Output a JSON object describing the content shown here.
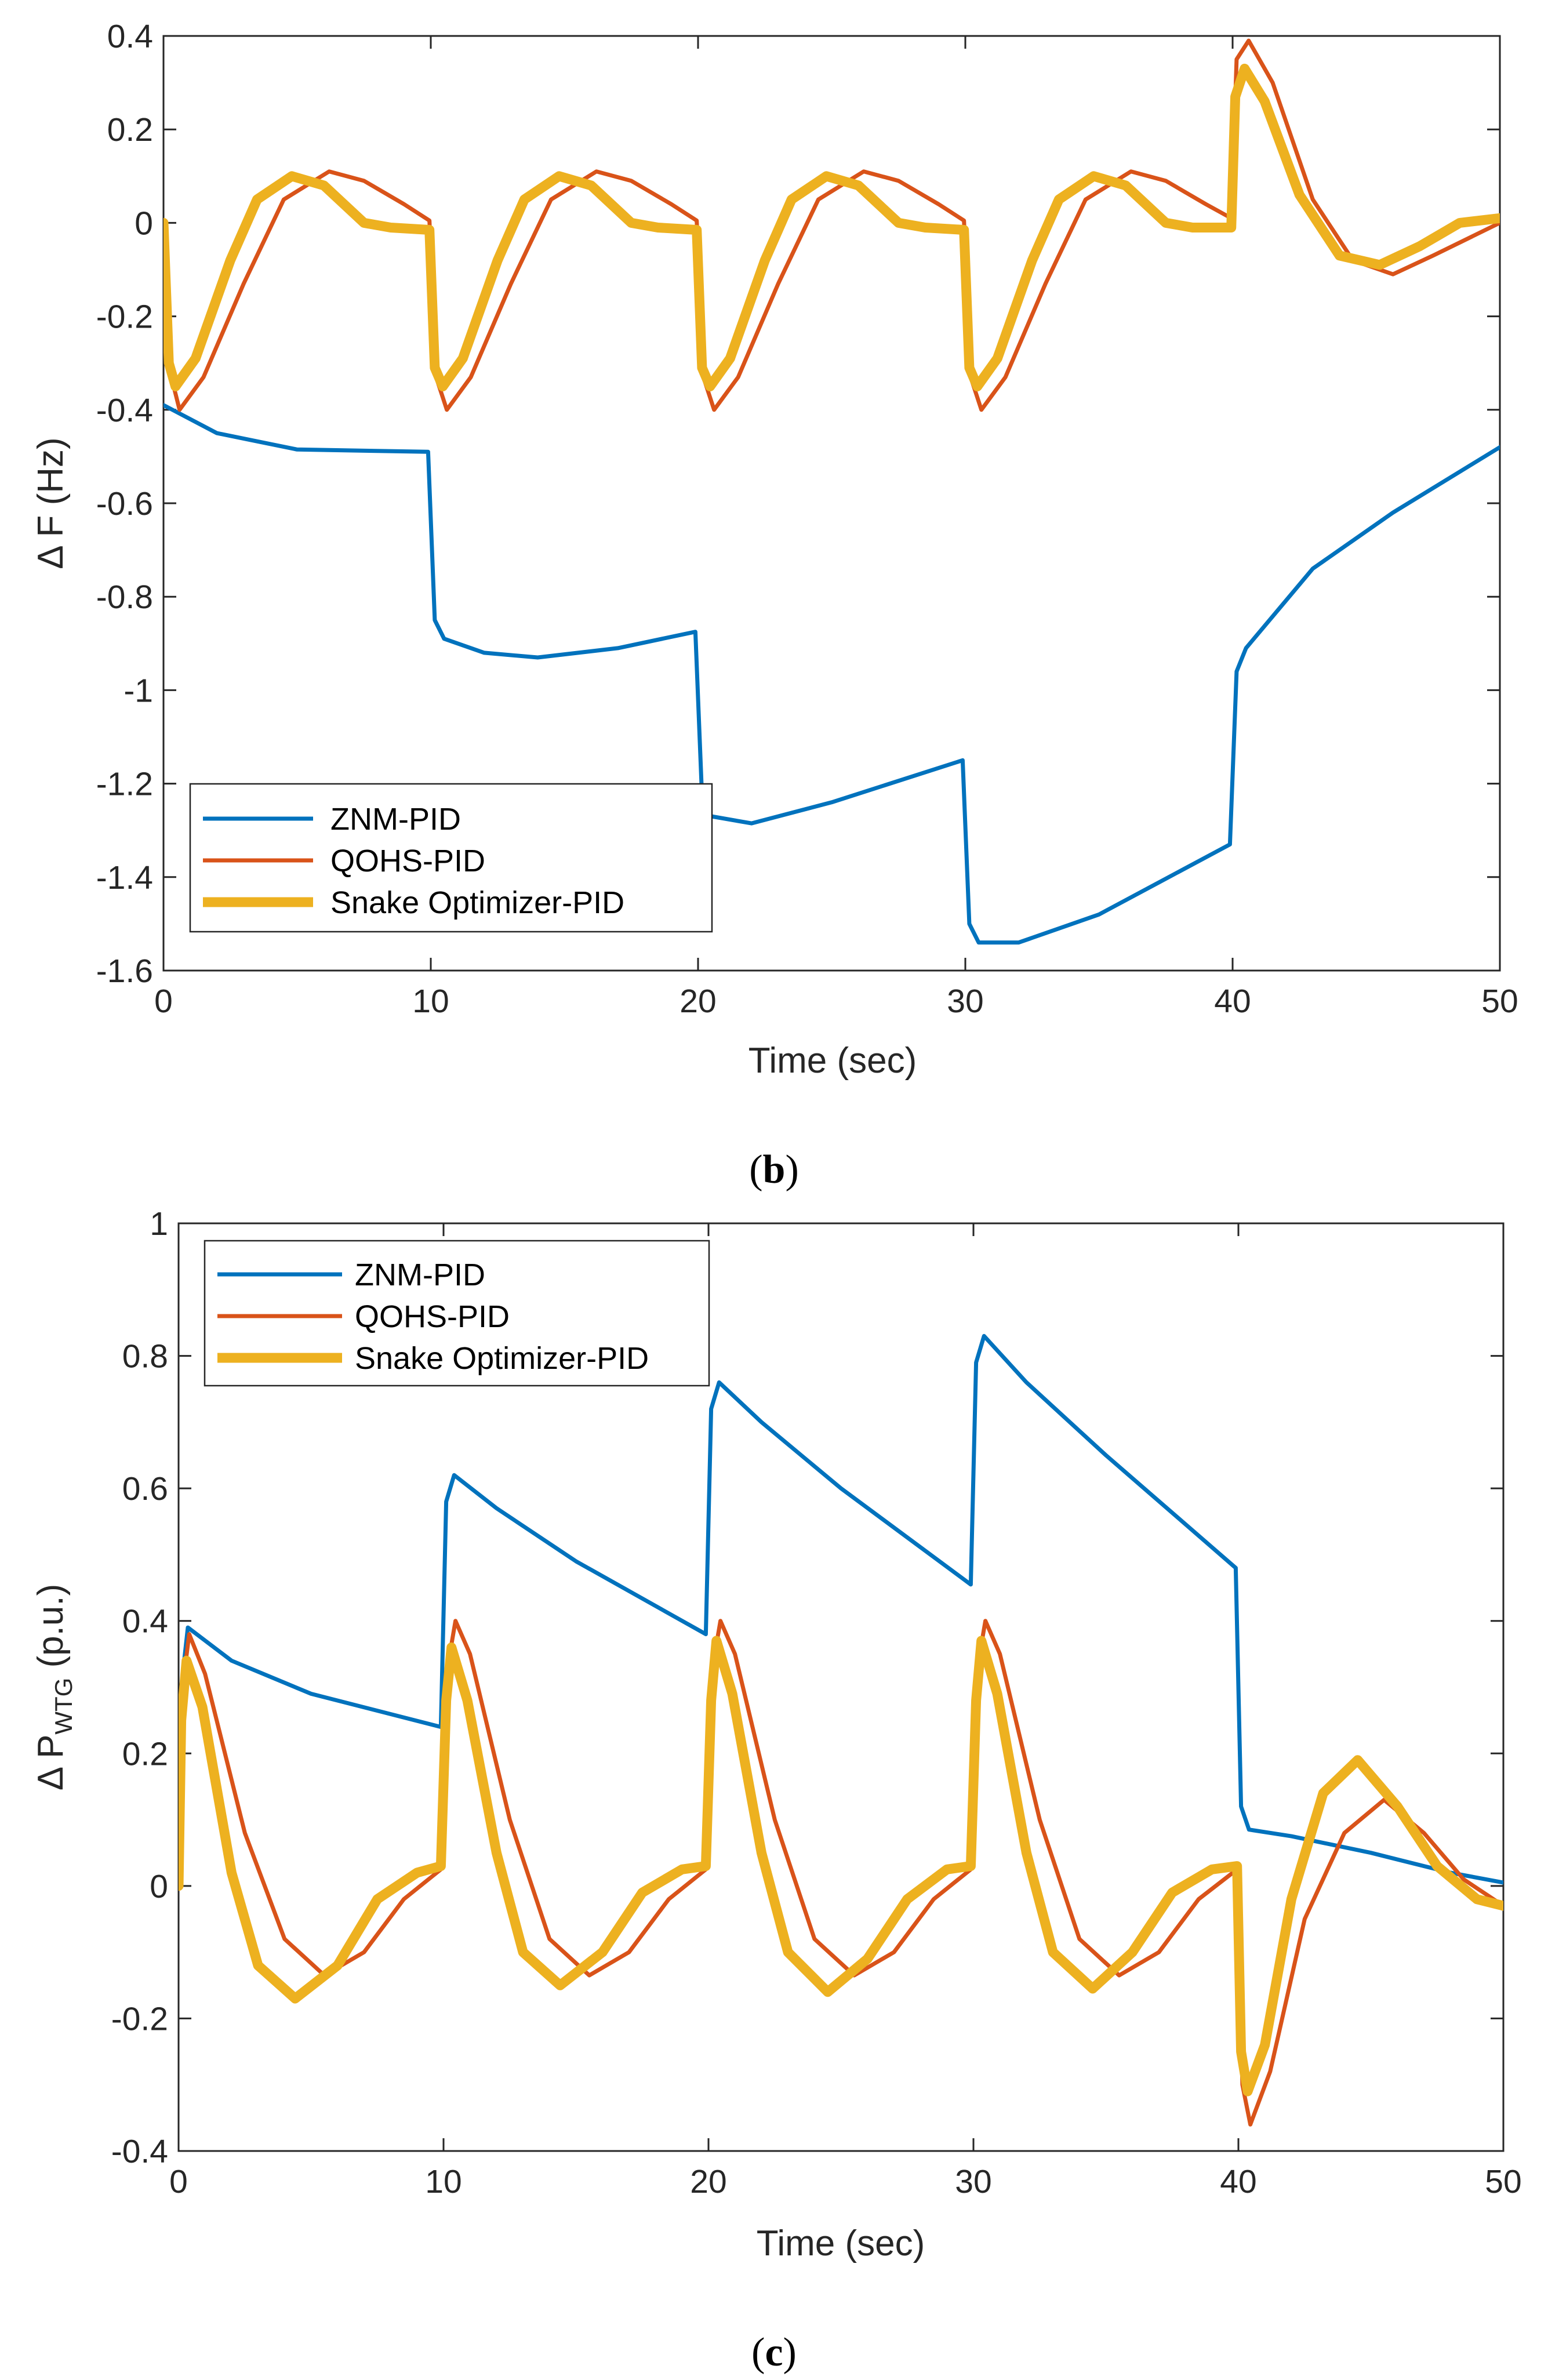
{
  "chart_data": [
    {
      "type": "line",
      "caption_open": "(",
      "caption_letter": "b",
      "caption_close": ")",
      "title": "",
      "xlabel": "Time (sec)",
      "ylabel_prefix": "Δ F ",
      "ylabel_main": "(Hz)",
      "ylabel_sub": "",
      "ylabel_tail": "",
      "xlim": [
        0,
        50
      ],
      "ylim": [
        -1.6,
        0.4
      ],
      "xticks": [
        0,
        10,
        20,
        30,
        40,
        50
      ],
      "yticks": [
        -1.6,
        -1.4,
        -1.2,
        -1,
        -0.8,
        -0.6,
        -0.4,
        -0.2,
        0,
        0.2,
        0.4
      ],
      "xtick_labels": [
        "0",
        "10",
        "20",
        "30",
        "40",
        "50"
      ],
      "ytick_labels": [
        "-1.6",
        "-1.4",
        "-1.2",
        "-1",
        "-0.8",
        "-0.6",
        "-0.4",
        "-0.2",
        "0",
        "0.2",
        "0.4"
      ],
      "legend_position": "bottom-left",
      "series": [
        {
          "name": "ZNM-PID",
          "color": "#0072BD",
          "width": "thin",
          "points": [
            [
              0,
              -0.39
            ],
            [
              2,
              -0.45
            ],
            [
              5,
              -0.485
            ],
            [
              9.9,
              -0.49
            ],
            [
              10.15,
              -0.85
            ],
            [
              10.5,
              -0.89
            ],
            [
              12,
              -0.92
            ],
            [
              14,
              -0.93
            ],
            [
              17,
              -0.91
            ],
            [
              19.9,
              -0.875
            ],
            [
              20.15,
              -1.23
            ],
            [
              20.5,
              -1.27
            ],
            [
              22,
              -1.285
            ],
            [
              25,
              -1.24
            ],
            [
              29.9,
              -1.15
            ],
            [
              30.15,
              -1.5
            ],
            [
              30.5,
              -1.54
            ],
            [
              32,
              -1.54
            ],
            [
              35,
              -1.48
            ],
            [
              39.9,
              -1.33
            ],
            [
              40.15,
              -0.96
            ],
            [
              40.5,
              -0.91
            ],
            [
              43,
              -0.74
            ],
            [
              46,
              -0.62
            ],
            [
              50,
              -0.48
            ]
          ]
        },
        {
          "name": "QOHS-PID",
          "color": "#D95319",
          "width": "thin",
          "points": [
            [
              0,
              0
            ],
            [
              0.25,
              -0.32
            ],
            [
              0.6,
              -0.4
            ],
            [
              1.5,
              -0.33
            ],
            [
              3,
              -0.13
            ],
            [
              4.5,
              0.05
            ],
            [
              6.2,
              0.11
            ],
            [
              7.5,
              0.09
            ],
            [
              9,
              0.04
            ],
            [
              9.95,
              0.005
            ],
            [
              10.2,
              -0.33
            ],
            [
              10.6,
              -0.4
            ],
            [
              11.5,
              -0.33
            ],
            [
              13,
              -0.13
            ],
            [
              14.5,
              0.05
            ],
            [
              16.2,
              0.11
            ],
            [
              17.5,
              0.09
            ],
            [
              19,
              0.04
            ],
            [
              19.95,
              0.005
            ],
            [
              20.2,
              -0.33
            ],
            [
              20.6,
              -0.4
            ],
            [
              21.5,
              -0.33
            ],
            [
              23,
              -0.13
            ],
            [
              24.5,
              0.05
            ],
            [
              26.2,
              0.11
            ],
            [
              27.5,
              0.09
            ],
            [
              29,
              0.04
            ],
            [
              29.95,
              0.005
            ],
            [
              30.2,
              -0.33
            ],
            [
              30.6,
              -0.4
            ],
            [
              31.5,
              -0.33
            ],
            [
              33,
              -0.13
            ],
            [
              34.5,
              0.05
            ],
            [
              36.2,
              0.11
            ],
            [
              37.5,
              0.09
            ],
            [
              39,
              0.04
            ],
            [
              39.95,
              0.01
            ],
            [
              40.15,
              0.35
            ],
            [
              40.6,
              0.39
            ],
            [
              41.5,
              0.3
            ],
            [
              43,
              0.05
            ],
            [
              44.5,
              -0.08
            ],
            [
              46,
              -0.11
            ],
            [
              47.5,
              -0.07
            ],
            [
              50,
              0.0
            ]
          ]
        },
        {
          "name": "Snake Optimizer-PID",
          "color": "#EDB120",
          "width": "thick",
          "points": [
            [
              0,
              0
            ],
            [
              0.2,
              -0.3
            ],
            [
              0.45,
              -0.35
            ],
            [
              1.2,
              -0.29
            ],
            [
              2.5,
              -0.08
            ],
            [
              3.5,
              0.05
            ],
            [
              4.8,
              0.1
            ],
            [
              6,
              0.08
            ],
            [
              7.5,
              0.0
            ],
            [
              8.5,
              -0.01
            ],
            [
              9.95,
              -0.015
            ],
            [
              10.15,
              -0.31
            ],
            [
              10.45,
              -0.35
            ],
            [
              11.2,
              -0.29
            ],
            [
              12.5,
              -0.08
            ],
            [
              13.5,
              0.05
            ],
            [
              14.8,
              0.1
            ],
            [
              16,
              0.08
            ],
            [
              17.5,
              0.0
            ],
            [
              18.5,
              -0.01
            ],
            [
              19.95,
              -0.015
            ],
            [
              20.15,
              -0.31
            ],
            [
              20.45,
              -0.35
            ],
            [
              21.2,
              -0.29
            ],
            [
              22.5,
              -0.08
            ],
            [
              23.5,
              0.05
            ],
            [
              24.8,
              0.1
            ],
            [
              26,
              0.08
            ],
            [
              27.5,
              0.0
            ],
            [
              28.5,
              -0.01
            ],
            [
              29.95,
              -0.015
            ],
            [
              30.15,
              -0.31
            ],
            [
              30.45,
              -0.35
            ],
            [
              31.2,
              -0.29
            ],
            [
              32.5,
              -0.08
            ],
            [
              33.5,
              0.05
            ],
            [
              34.8,
              0.1
            ],
            [
              36,
              0.08
            ],
            [
              37.5,
              0.0
            ],
            [
              38.5,
              -0.01
            ],
            [
              39.95,
              -0.01
            ],
            [
              40.1,
              0.27
            ],
            [
              40.45,
              0.33
            ],
            [
              41.2,
              0.26
            ],
            [
              42.5,
              0.06
            ],
            [
              44,
              -0.07
            ],
            [
              45.5,
              -0.09
            ],
            [
              47,
              -0.05
            ],
            [
              48.5,
              0.0
            ],
            [
              50,
              0.01
            ]
          ]
        }
      ]
    },
    {
      "type": "line",
      "caption_open": "(",
      "caption_letter": "c",
      "caption_close": ")",
      "title": "",
      "xlabel": "Time (sec)",
      "ylabel_prefix": "Δ P",
      "ylabel_main": "",
      "ylabel_sub": "WTG",
      "ylabel_tail": " (p.u.)",
      "xlim": [
        0,
        50
      ],
      "ylim": [
        -0.4,
        1
      ],
      "xticks": [
        0,
        10,
        20,
        30,
        40,
        50
      ],
      "yticks": [
        -0.4,
        -0.2,
        0,
        0.2,
        0.4,
        0.6,
        0.8,
        1
      ],
      "xtick_labels": [
        "0",
        "10",
        "20",
        "30",
        "40",
        "50"
      ],
      "ytick_labels": [
        "-0.4",
        "-0.2",
        "0",
        "0.2",
        "0.4",
        "0.6",
        "0.8",
        "1"
      ],
      "legend_position": "top-left",
      "series": [
        {
          "name": "ZNM-PID",
          "color": "#0072BD",
          "width": "thin",
          "points": [
            [
              0,
              0
            ],
            [
              0.1,
              0.3
            ],
            [
              0.35,
              0.39
            ],
            [
              2,
              0.34
            ],
            [
              5,
              0.29
            ],
            [
              9.9,
              0.24
            ],
            [
              10.1,
              0.58
            ],
            [
              10.4,
              0.62
            ],
            [
              12,
              0.57
            ],
            [
              15,
              0.49
            ],
            [
              19.9,
              0.38
            ],
            [
              20.1,
              0.72
            ],
            [
              20.4,
              0.76
            ],
            [
              22,
              0.7
            ],
            [
              25,
              0.6
            ],
            [
              29.9,
              0.455
            ],
            [
              30.1,
              0.79
            ],
            [
              30.4,
              0.83
            ],
            [
              32,
              0.76
            ],
            [
              35,
              0.65
            ],
            [
              39.9,
              0.48
            ],
            [
              40.1,
              0.12
            ],
            [
              40.4,
              0.085
            ],
            [
              42,
              0.075
            ],
            [
              45,
              0.05
            ],
            [
              48,
              0.02
            ],
            [
              50,
              0.005
            ]
          ]
        },
        {
          "name": "QOHS-PID",
          "color": "#D95319",
          "width": "thin",
          "points": [
            [
              0,
              0
            ],
            [
              0.15,
              0.3
            ],
            [
              0.4,
              0.38
            ],
            [
              1,
              0.32
            ],
            [
              2.5,
              0.08
            ],
            [
              4,
              -0.08
            ],
            [
              5.5,
              -0.135
            ],
            [
              7,
              -0.1
            ],
            [
              8.5,
              -0.02
            ],
            [
              9.9,
              0.025
            ],
            [
              10.15,
              0.33
            ],
            [
              10.45,
              0.4
            ],
            [
              11,
              0.35
            ],
            [
              12.5,
              0.1
            ],
            [
              14,
              -0.08
            ],
            [
              15.5,
              -0.135
            ],
            [
              17,
              -0.1
            ],
            [
              18.5,
              -0.02
            ],
            [
              19.9,
              0.025
            ],
            [
              20.15,
              0.33
            ],
            [
              20.45,
              0.4
            ],
            [
              21,
              0.35
            ],
            [
              22.5,
              0.1
            ],
            [
              24,
              -0.08
            ],
            [
              25.5,
              -0.135
            ],
            [
              27,
              -0.1
            ],
            [
              28.5,
              -0.02
            ],
            [
              29.9,
              0.025
            ],
            [
              30.15,
              0.33
            ],
            [
              30.45,
              0.4
            ],
            [
              31,
              0.35
            ],
            [
              32.5,
              0.1
            ],
            [
              34,
              -0.08
            ],
            [
              35.5,
              -0.135
            ],
            [
              37,
              -0.1
            ],
            [
              38.5,
              -0.02
            ],
            [
              39.95,
              0.025
            ],
            [
              40.15,
              -0.3
            ],
            [
              40.45,
              -0.36
            ],
            [
              41.2,
              -0.28
            ],
            [
              42.5,
              -0.05
            ],
            [
              44,
              0.08
            ],
            [
              45.5,
              0.13
            ],
            [
              47,
              0.08
            ],
            [
              48.5,
              0.01
            ],
            [
              50,
              -0.03
            ]
          ]
        },
        {
          "name": "Snake Optimizer-PID",
          "color": "#EDB120",
          "width": "thick",
          "points": [
            [
              0,
              0
            ],
            [
              0.1,
              0.25
            ],
            [
              0.3,
              0.34
            ],
            [
              0.9,
              0.27
            ],
            [
              2,
              0.02
            ],
            [
              3,
              -0.12
            ],
            [
              4.4,
              -0.17
            ],
            [
              6,
              -0.12
            ],
            [
              7.5,
              -0.02
            ],
            [
              9,
              0.02
            ],
            [
              9.9,
              0.03
            ],
            [
              10.1,
              0.28
            ],
            [
              10.3,
              0.36
            ],
            [
              10.9,
              0.28
            ],
            [
              12,
              0.05
            ],
            [
              13,
              -0.1
            ],
            [
              14.4,
              -0.15
            ],
            [
              16,
              -0.1
            ],
            [
              17.5,
              -0.01
            ],
            [
              19,
              0.025
            ],
            [
              19.9,
              0.03
            ],
            [
              20.1,
              0.28
            ],
            [
              20.3,
              0.37
            ],
            [
              20.9,
              0.29
            ],
            [
              22,
              0.05
            ],
            [
              23,
              -0.1
            ],
            [
              24.5,
              -0.16
            ],
            [
              26,
              -0.11
            ],
            [
              27.5,
              -0.02
            ],
            [
              29,
              0.025
            ],
            [
              29.9,
              0.03
            ],
            [
              30.1,
              0.28
            ],
            [
              30.3,
              0.37
            ],
            [
              30.9,
              0.29
            ],
            [
              32,
              0.05
            ],
            [
              33,
              -0.1
            ],
            [
              34.5,
              -0.155
            ],
            [
              36,
              -0.1
            ],
            [
              37.5,
              -0.01
            ],
            [
              39,
              0.025
            ],
            [
              39.95,
              0.03
            ],
            [
              40.1,
              -0.25
            ],
            [
              40.35,
              -0.31
            ],
            [
              41,
              -0.24
            ],
            [
              42,
              -0.02
            ],
            [
              43.2,
              0.14
            ],
            [
              44.5,
              0.19
            ],
            [
              46,
              0.12
            ],
            [
              47.5,
              0.03
            ],
            [
              49,
              -0.02
            ],
            [
              50,
              -0.03
            ]
          ]
        }
      ]
    }
  ]
}
